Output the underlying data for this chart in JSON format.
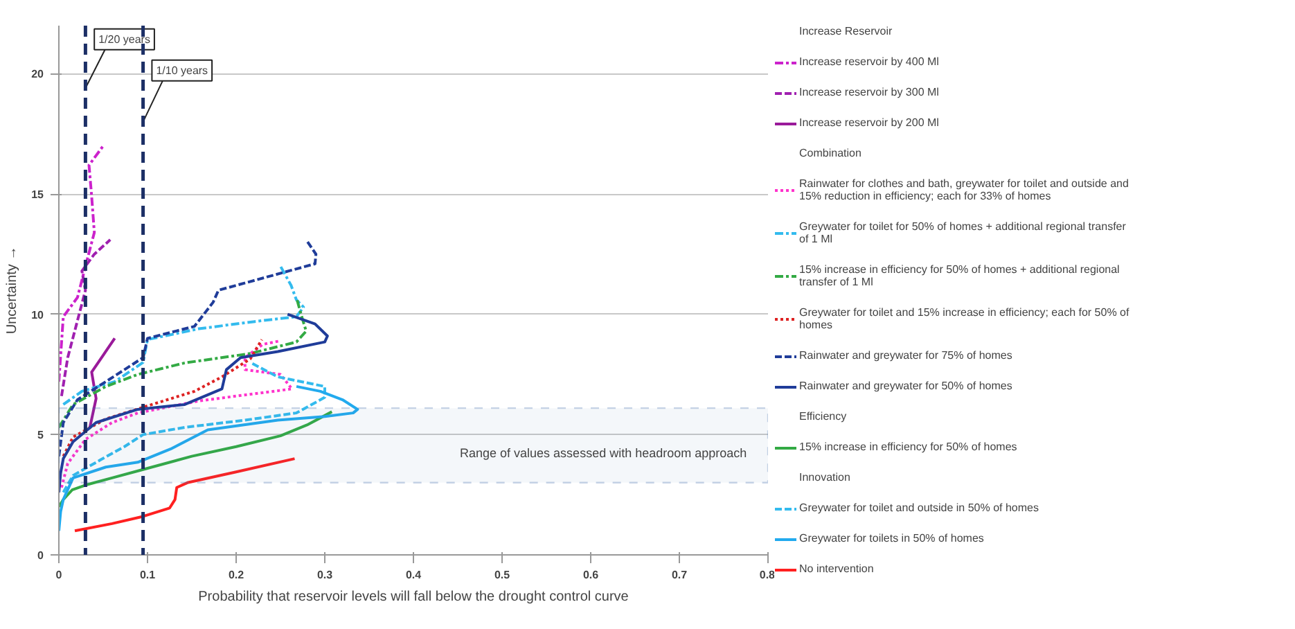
{
  "chart_data": {
    "type": "line",
    "xlabel": "Probability that reservoir levels will fall below the drought control curve",
    "ylabel": "Uncertainty →",
    "xlim": [
      0,
      0.8
    ],
    "ylim": [
      0,
      22
    ],
    "xticks": [
      0,
      0.1,
      0.2,
      0.3,
      0.4,
      0.5,
      0.6,
      0.7,
      0.8
    ],
    "yticks": [
      0,
      5,
      10,
      15,
      20
    ],
    "grid": "y",
    "legend": "right",
    "marker": "none",
    "annotations": [
      "Increase Reservoir",
      "Combination",
      "Efficiency",
      "Innovation"
    ],
    "ref_lines": [
      {
        "axis": "x",
        "value": 0.03,
        "label": "1/20 years",
        "color": "#1c2f66",
        "line_style": "dashed"
      },
      {
        "axis": "x",
        "value": 0.095,
        "label": "1/10 years",
        "color": "#1c2f66",
        "line_style": "dashed"
      }
    ],
    "bands": [
      {
        "axis": "y",
        "from": 3,
        "to": 6.1,
        "label": "Range of values assessed with headroom approach",
        "color": "#4a6fb0"
      }
    ],
    "series": [
      {
        "name": "Increase reservoir by 400 Ml",
        "color": "#cc22cc",
        "line_style": "dashdot",
        "x": [
          0,
          0.005,
          0.021,
          0.03,
          0.04,
          0.037,
          0.034,
          0.05
        ],
        "values": [
          7.2,
          9.9,
          10.7,
          12.0,
          13.4,
          14.9,
          16.2,
          17.0
        ]
      },
      {
        "name": "Increase reservoir by 300 Ml",
        "color": "#a020b0",
        "line_style": "dashed",
        "x": [
          0.003,
          0.01,
          0.02,
          0.03,
          0.026,
          0.04,
          0.058
        ],
        "values": [
          6.6,
          8.2,
          9.6,
          11.0,
          11.8,
          12.5,
          13.1
        ]
      },
      {
        "name": "Increase reservoir by 200 Ml",
        "color": "#9a1a9a",
        "line_style": "solid",
        "x": [
          0.035,
          0.042,
          0.037,
          0.05,
          0.063
        ],
        "values": [
          5.3,
          6.5,
          7.6,
          8.3,
          9.0
        ]
      },
      {
        "name": "Rainwater for clothes and bath, greywater for toilet and outside and 15% reduction in efficiency; each for 33% of homes",
        "color": "#ff33cc",
        "line_style": "dotted",
        "x": [
          0.003,
          0.01,
          0.03,
          0.06,
          0.089,
          0.158,
          0.263,
          0.25,
          0.21,
          0.21,
          0.23,
          0.25
        ],
        "values": [
          2.8,
          3.8,
          4.8,
          5.5,
          5.9,
          6.4,
          6.9,
          7.5,
          7.7,
          8.2,
          8.75,
          8.9
        ]
      },
      {
        "name": "Greywater for toilet for 50% of homes + additional regional transfer of 1 Ml",
        "color": "#33bbee",
        "line_style": "dashdot",
        "x": [
          0.005,
          0.026,
          0.063,
          0.095,
          0.1,
          0.158,
          0.221,
          0.268,
          0.276,
          0.268,
          0.262,
          0.25
        ],
        "values": [
          6.25,
          6.8,
          7.2,
          8.0,
          8.95,
          9.4,
          9.7,
          9.9,
          10.3,
          10.6,
          11.2,
          12.0
        ]
      },
      {
        "name": "15% increase in efficiency for 50% of homes + additional regional transfer of 1 Ml",
        "color": "#33aa44",
        "line_style": "dashdot",
        "x": [
          0,
          0.016,
          0.053,
          0.089,
          0.142,
          0.216,
          0.268,
          0.279,
          0.274,
          0.268
        ],
        "values": [
          5.3,
          6.25,
          7.0,
          7.5,
          7.98,
          8.37,
          8.85,
          9.3,
          9.9,
          10.7
        ]
      },
      {
        "name": "Greywater for toilet and 15% increase in efficiency; each for 50% of homes",
        "color": "#dd2222",
        "line_style": "dotted",
        "x": [
          0.005,
          0.016,
          0.053,
          0.105,
          0.153,
          0.184,
          0.216,
          0.229
        ],
        "values": [
          4.1,
          4.9,
          5.65,
          6.25,
          6.8,
          7.4,
          8.15,
          8.95
        ]
      },
      {
        "name": "Rainwater and greywater for 75% of homes",
        "color": "#1f3c99",
        "line_style": "dashed",
        "x": [
          0,
          0.005,
          0.021,
          0.053,
          0.095,
          0.1,
          0.153,
          0.174,
          0.18,
          0.289,
          0.29,
          0.279
        ],
        "values": [
          4.1,
          5.5,
          6.45,
          7.2,
          8.2,
          9.0,
          9.5,
          10.5,
          11.0,
          12.1,
          12.5,
          13.1
        ]
      },
      {
        "name": "Rainwater and greywater for 50% of homes",
        "color": "#1f3c99",
        "line_style": "solid",
        "x": [
          0,
          0.002,
          0.005,
          0.016,
          0.042,
          0.089,
          0.142,
          0.184,
          0.189,
          0.205,
          0.247,
          0.3,
          0.303,
          0.289,
          0.258
        ],
        "values": [
          2.6,
          3.4,
          4.0,
          4.7,
          5.5,
          6.05,
          6.25,
          6.9,
          7.7,
          8.2,
          8.45,
          8.85,
          9.1,
          9.6,
          10.0
        ]
      },
      {
        "name": "15% increase in efficiency for 50% of homes",
        "color": "#33aa44",
        "line_style": "solid",
        "x": [
          0,
          0.005,
          0.015,
          0.03,
          0.06,
          0.09,
          0.15,
          0.2,
          0.25,
          0.28,
          0.308
        ],
        "values": [
          2.0,
          2.3,
          2.7,
          2.9,
          3.2,
          3.5,
          4.1,
          4.5,
          4.95,
          5.4,
          5.95
        ]
      },
      {
        "name": "Greywater for toilet and outside in 50% of homes",
        "color": "#33bbee",
        "line_style": "dashed",
        "x": [
          0.005,
          0.016,
          0.047,
          0.074,
          0.095,
          0.142,
          0.21,
          0.268,
          0.3,
          0.3,
          0.247,
          0.216
        ],
        "values": [
          2.6,
          3.3,
          3.95,
          4.5,
          5.0,
          5.3,
          5.6,
          5.9,
          6.55,
          7.0,
          7.4,
          8.0
        ]
      },
      {
        "name": "Greywater for toilets in 50% of homes",
        "color": "#22aaee",
        "line_style": "solid",
        "x": [
          0,
          0.002,
          0.005,
          0.016,
          0.053,
          0.089,
          0.126,
          0.168,
          0.247,
          0.3,
          0.332,
          0.337,
          0.32,
          0.295,
          0.268
        ],
        "values": [
          1.0,
          1.8,
          2.3,
          3.2,
          3.65,
          3.85,
          4.4,
          5.2,
          5.6,
          5.75,
          5.9,
          6.05,
          6.45,
          6.8,
          7.0
        ]
      },
      {
        "name": "No intervention",
        "color": "#ff2020",
        "line_style": "solid",
        "x": [
          0.018,
          0.06,
          0.095,
          0.125,
          0.131,
          0.133,
          0.145,
          0.2,
          0.266
        ],
        "values": [
          1.0,
          1.3,
          1.6,
          1.95,
          2.3,
          2.8,
          3.0,
          3.45,
          4.0
        ]
      }
    ]
  }
}
